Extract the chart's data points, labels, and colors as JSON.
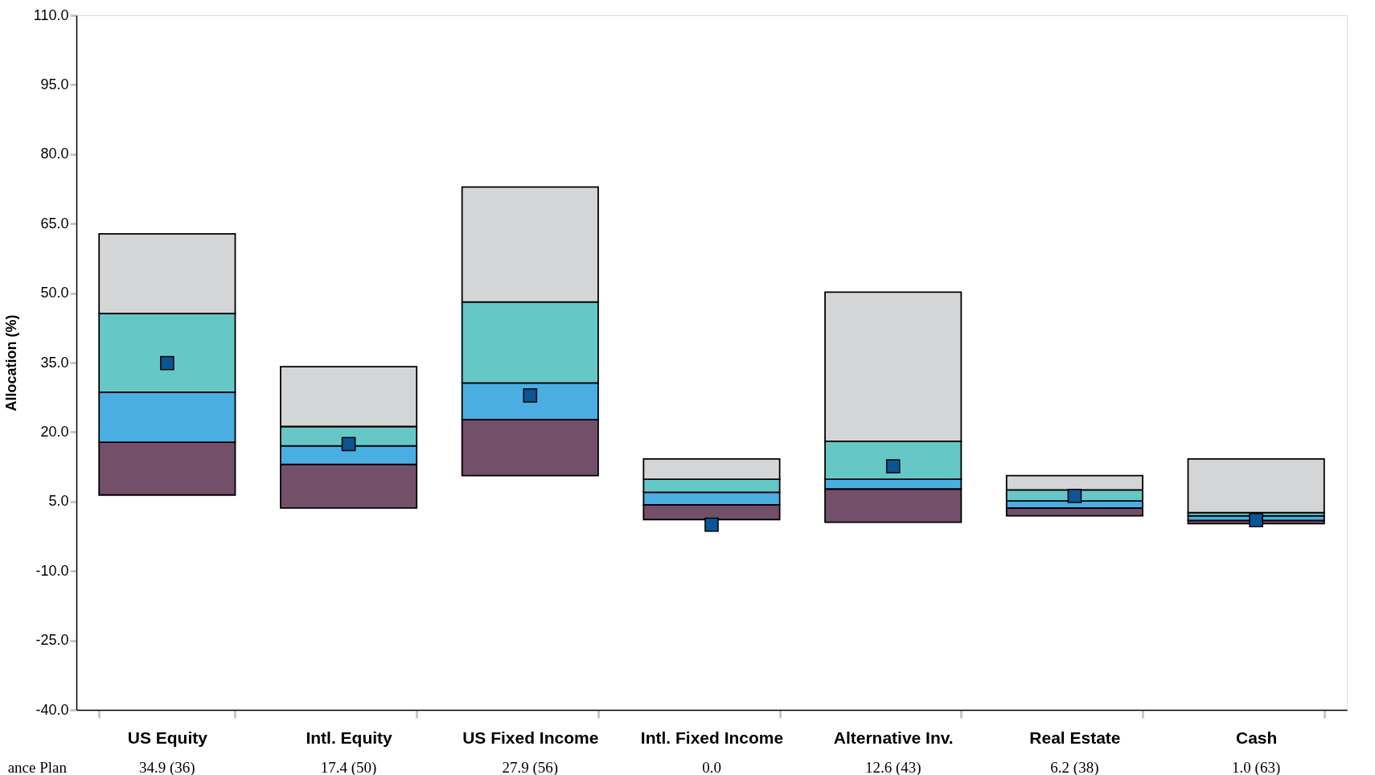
{
  "chart_data": {
    "type": "bar",
    "ylabel": "Allocation (%)",
    "grid": false,
    "categories": [
      "US Equity",
      "Intl. Equity",
      "US Fixed Income",
      "Intl. Fixed Income",
      "Alternative Inv.",
      "Real Estate",
      "Cash"
    ],
    "ylim": [
      -40,
      110
    ],
    "yticks": [
      {
        "value": 110,
        "label": "110.0"
      },
      {
        "value": 95,
        "label": "95.0"
      },
      {
        "value": 80,
        "label": "80.0"
      },
      {
        "value": 65,
        "label": "65.0"
      },
      {
        "value": 50,
        "label": "50.0"
      },
      {
        "value": 35,
        "label": "35.0"
      },
      {
        "value": 20,
        "label": "20.0"
      },
      {
        "value": 5,
        "label": "5.0"
      },
      {
        "value": -10,
        "label": "-10.0"
      },
      {
        "value": -25,
        "label": "-25.0"
      },
      {
        "value": -40,
        "label": "-40.0"
      }
    ],
    "series": [
      {
        "color": "#734f6a",
        "base": [
          6.4,
          3.6,
          10.6,
          1.1,
          0.5,
          1.9,
          0.2
        ],
        "values": [
          11.4,
          9.4,
          12.1,
          3.2,
          7.2,
          1.7,
          0.7
        ]
      },
      {
        "color": "#4aaee3",
        "base": [
          17.8,
          13.0,
          22.7,
          4.3,
          7.7,
          3.6,
          0.9
        ],
        "values": [
          10.8,
          4.0,
          7.9,
          2.7,
          2.1,
          1.5,
          1.0
        ]
      },
      {
        "color": "#66c8c6",
        "base": [
          28.6,
          17.0,
          30.6,
          7.0,
          9.8,
          5.1,
          1.9
        ],
        "values": [
          17.0,
          4.2,
          17.5,
          2.8,
          8.2,
          2.4,
          0.7
        ]
      },
      {
        "color": "#d4d5d7",
        "base": [
          45.6,
          21.2,
          48.1,
          9.8,
          18.0,
          7.5,
          2.6
        ],
        "values": [
          17.2,
          12.9,
          24.8,
          4.4,
          32.2,
          3.1,
          11.6
        ]
      },
      {
        "name": "ance Plan",
        "type": "scatter",
        "marker": "square",
        "color": "#0a5596",
        "values": [
          34.9,
          17.4,
          27.9,
          0.0,
          12.6,
          6.2,
          1.0
        ],
        "value_labels": [
          "34.9 (36)",
          "17.4 (50)",
          "27.9 (56)",
          "0.0",
          "12.6 (43)",
          "6.2 (38)",
          "1.0 (63)"
        ]
      }
    ]
  }
}
